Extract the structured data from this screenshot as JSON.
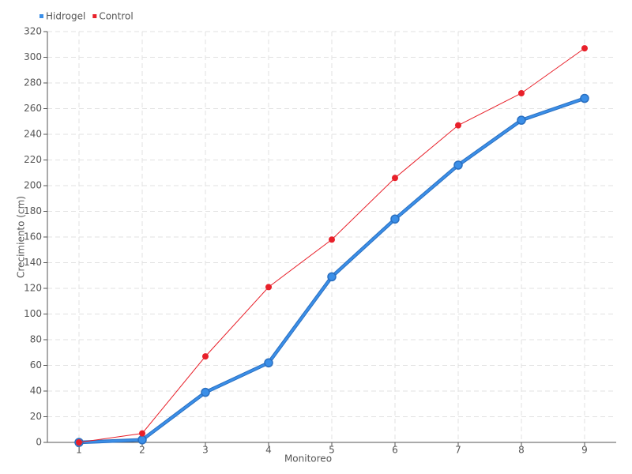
{
  "chart_data": {
    "type": "line",
    "x": [
      1,
      2,
      3,
      4,
      5,
      6,
      7,
      8,
      9
    ],
    "xlabel": "Monitoreo",
    "ylabel": "Crecimiento (cm)",
    "series": [
      {
        "name": "Hidrogel",
        "color": "#3b8fe8",
        "values": [
          0,
          2,
          39,
          62,
          129,
          174,
          216,
          251,
          268
        ]
      },
      {
        "name": "Control",
        "color": "#e8202a",
        "values": [
          0,
          7,
          67,
          121,
          158,
          206,
          247,
          272,
          307
        ]
      }
    ],
    "xlim": [
      0.5,
      9.5
    ],
    "xticks": [
      1,
      2,
      3,
      4,
      5,
      6,
      7,
      8,
      9
    ],
    "ylim": [
      0,
      320
    ],
    "yticks": [
      0,
      20,
      40,
      60,
      80,
      100,
      120,
      140,
      160,
      180,
      200,
      220,
      240,
      260,
      280,
      300,
      320
    ],
    "grid": true,
    "legend": "top-left"
  }
}
